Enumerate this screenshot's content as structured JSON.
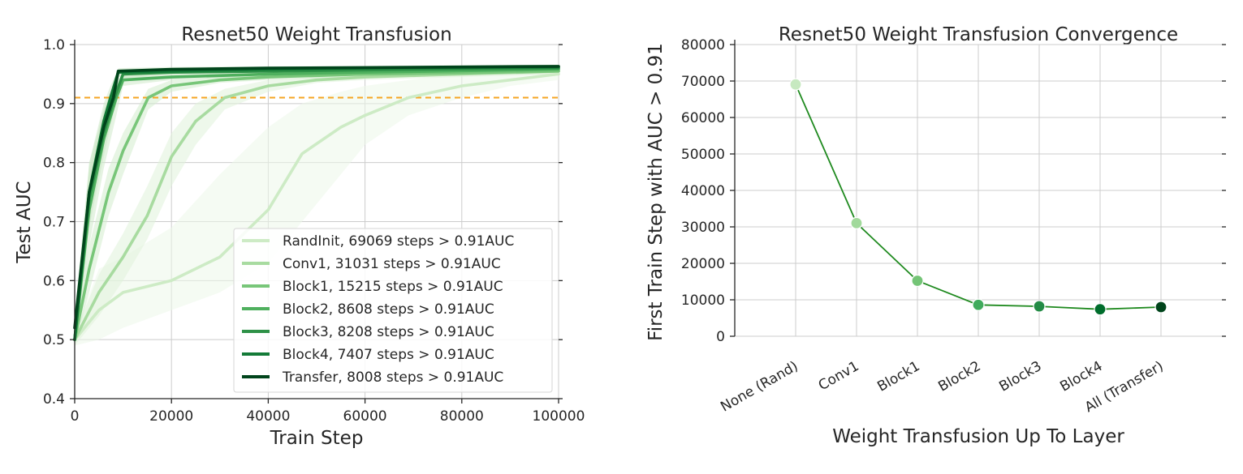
{
  "chart_data": [
    {
      "type": "line",
      "title": "Resnet50 Weight Transfusion",
      "xlabel": "Train Step",
      "ylabel": "Test AUC",
      "xlim": [
        0,
        100000
      ],
      "ylim": [
        0.4,
        1.0
      ],
      "xticks": [
        0,
        20000,
        40000,
        60000,
        80000,
        100000
      ],
      "xtick_labels": [
        "0",
        "20000",
        "40000",
        "60000",
        "80000",
        "100000"
      ],
      "yticks": [
        0.4,
        0.5,
        0.6,
        0.7,
        0.8,
        0.9,
        1.0
      ],
      "ytick_labels": [
        "0.4",
        "0.5",
        "0.6",
        "0.7",
        "0.8",
        "0.9",
        "1.0"
      ],
      "grid": true,
      "legend_position": "lower-right",
      "threshold": {
        "value": 0.91,
        "color": "#f5a623",
        "style": "dashed"
      },
      "series": [
        {
          "name": "RandInit, 69069 steps > 0.91AUC",
          "color": "#cdebc5",
          "band_color": "#edf8ea",
          "x": [
            0,
            5000,
            10000,
            20000,
            30000,
            40000,
            47000,
            55000,
            60000,
            69000,
            80000,
            90000,
            100000
          ],
          "y": [
            0.5,
            0.55,
            0.58,
            0.6,
            0.64,
            0.72,
            0.815,
            0.86,
            0.88,
            0.91,
            0.93,
            0.94,
            0.95
          ],
          "band_low": [
            0.49,
            0.5,
            0.52,
            0.55,
            0.58,
            0.63,
            0.7,
            0.78,
            0.83,
            0.88,
            0.91,
            0.93,
            0.94
          ],
          "band_high": [
            0.51,
            0.62,
            0.64,
            0.69,
            0.78,
            0.86,
            0.9,
            0.92,
            0.93,
            0.94,
            0.95,
            0.955,
            0.96
          ]
        },
        {
          "name": "Conv1, 31031 steps > 0.91AUC",
          "color": "#a8dba0",
          "band_color": "#e0f3db",
          "x": [
            0,
            5000,
            10000,
            15000,
            20000,
            25000,
            31000,
            40000,
            50000,
            60000,
            80000,
            100000
          ],
          "y": [
            0.5,
            0.58,
            0.64,
            0.71,
            0.81,
            0.87,
            0.91,
            0.93,
            0.94,
            0.945,
            0.95,
            0.955
          ],
          "band_low": [
            0.49,
            0.54,
            0.6,
            0.67,
            0.76,
            0.83,
            0.89,
            0.92,
            0.935,
            0.94,
            0.945,
            0.95
          ],
          "band_high": [
            0.51,
            0.61,
            0.68,
            0.76,
            0.85,
            0.9,
            0.925,
            0.94,
            0.945,
            0.95,
            0.955,
            0.96
          ]
        },
        {
          "name": "Block1, 15215 steps > 0.91AUC",
          "color": "#78c679",
          "band_color": "#d3ecce",
          "x": [
            0,
            3000,
            7000,
            10000,
            15200,
            20000,
            30000,
            40000,
            60000,
            80000,
            100000
          ],
          "y": [
            0.5,
            0.62,
            0.75,
            0.82,
            0.91,
            0.93,
            0.94,
            0.945,
            0.95,
            0.952,
            0.955
          ],
          "band_low": [
            0.49,
            0.58,
            0.71,
            0.78,
            0.89,
            0.92,
            0.935,
            0.94,
            0.945,
            0.948,
            0.95
          ],
          "band_high": [
            0.51,
            0.66,
            0.79,
            0.85,
            0.925,
            0.94,
            0.945,
            0.95,
            0.955,
            0.957,
            0.96
          ]
        },
        {
          "name": "Block2, 8608 steps > 0.91AUC",
          "color": "#4fb05e",
          "band_color": "#cfe9cb",
          "x": [
            0,
            3000,
            6000,
            8600,
            10000,
            20000,
            40000,
            60000,
            100000
          ],
          "y": [
            0.5,
            0.72,
            0.84,
            0.91,
            0.94,
            0.945,
            0.95,
            0.953,
            0.958
          ],
          "band_low": [
            0.49,
            0.66,
            0.79,
            0.88,
            0.93,
            0.94,
            0.945,
            0.95,
            0.955
          ],
          "band_high": [
            0.51,
            0.78,
            0.88,
            0.93,
            0.95,
            0.95,
            0.955,
            0.957,
            0.96
          ]
        },
        {
          "name": "Block3, 8208 steps > 0.91AUC",
          "color": "#2e9147",
          "band_color": "#cfe9cb",
          "x": [
            0,
            3000,
            6000,
            8200,
            10000,
            20000,
            40000,
            60000,
            100000
          ],
          "y": [
            0.5,
            0.74,
            0.85,
            0.91,
            0.95,
            0.953,
            0.955,
            0.957,
            0.96
          ],
          "band_low": [
            0.49,
            0.69,
            0.81,
            0.89,
            0.94,
            0.948,
            0.952,
            0.955,
            0.957
          ],
          "band_high": [
            0.51,
            0.79,
            0.89,
            0.93,
            0.955,
            0.957,
            0.958,
            0.96,
            0.963
          ]
        },
        {
          "name": "Block4, 7407 steps > 0.91AUC",
          "color": "#137a37",
          "band_color": "#cfe9cb",
          "x": [
            0,
            3000,
            6000,
            7400,
            9000,
            20000,
            40000,
            60000,
            100000
          ],
          "y": [
            0.5,
            0.75,
            0.87,
            0.91,
            0.953,
            0.955,
            0.958,
            0.96,
            0.962
          ],
          "band_low": [
            0.49,
            0.7,
            0.83,
            0.89,
            0.945,
            0.95,
            0.955,
            0.957,
            0.96
          ],
          "band_high": [
            0.51,
            0.8,
            0.9,
            0.93,
            0.958,
            0.958,
            0.96,
            0.962,
            0.965
          ]
        },
        {
          "name": "Transfer, 8008 steps > 0.91AUC",
          "color": "#00441b",
          "band_color": "#cfe9cb",
          "x": [
            0,
            3000,
            6000,
            8000,
            9000,
            20000,
            40000,
            60000,
            100000
          ],
          "y": [
            0.52,
            0.75,
            0.86,
            0.91,
            0.955,
            0.958,
            0.96,
            0.961,
            0.963
          ],
          "band_low": [
            0.5,
            0.7,
            0.82,
            0.89,
            0.948,
            0.953,
            0.956,
            0.958,
            0.96
          ],
          "band_high": [
            0.54,
            0.8,
            0.89,
            0.93,
            0.96,
            0.962,
            0.963,
            0.964,
            0.966
          ]
        }
      ]
    },
    {
      "type": "line",
      "title": "Resnet50 Weight Transfusion Convergence",
      "xlabel": "Weight Transfusion Up To Layer",
      "ylabel": "First Train Step with AUC > 0.91",
      "ylim": [
        0,
        80000
      ],
      "yticks": [
        0,
        10000,
        20000,
        30000,
        40000,
        50000,
        60000,
        70000,
        80000
      ],
      "ytick_labels": [
        "0",
        "10000",
        "20000",
        "30000",
        "40000",
        "50000",
        "60000",
        "70000",
        "80000"
      ],
      "grid": true,
      "line_color": "#1f8a1f",
      "categories": [
        "None (Rand)",
        "Conv1",
        "Block1",
        "Block2",
        "Block3",
        "Block4",
        "All (Transfer)"
      ],
      "values": [
        69069,
        31031,
        15215,
        8608,
        8208,
        7407,
        8008
      ],
      "point_colors": [
        "#c7e9c0",
        "#a1d99b",
        "#74c476",
        "#41ab5d",
        "#238b45",
        "#006d2c",
        "#00441b"
      ]
    }
  ]
}
